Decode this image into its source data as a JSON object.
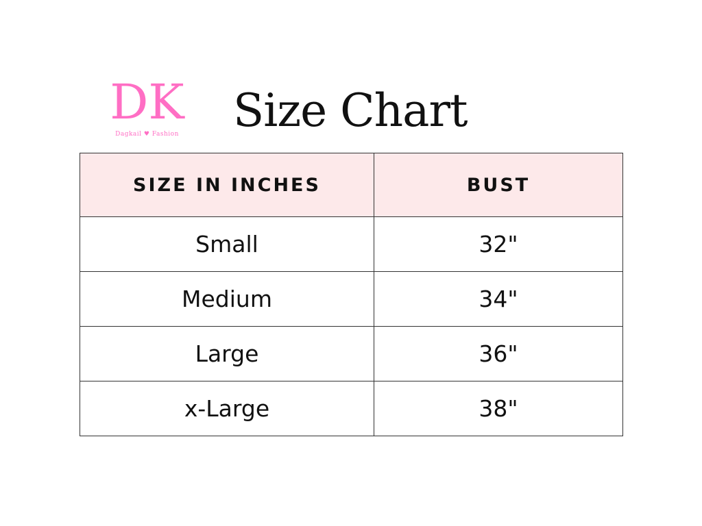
{
  "logo": {
    "monogram": "DK",
    "brand": "Dagkail",
    "suffix": "Fashion",
    "color": "#ff6ec4"
  },
  "title": "Size Chart",
  "table": {
    "header_bg": "#fde9ea",
    "headers": [
      "SIZE IN INCHES",
      "BUST"
    ],
    "rows": [
      [
        "Small",
        "32\""
      ],
      [
        "Medium",
        "34\""
      ],
      [
        "Large",
        "36\""
      ],
      [
        "x-Large",
        "38\""
      ]
    ]
  }
}
